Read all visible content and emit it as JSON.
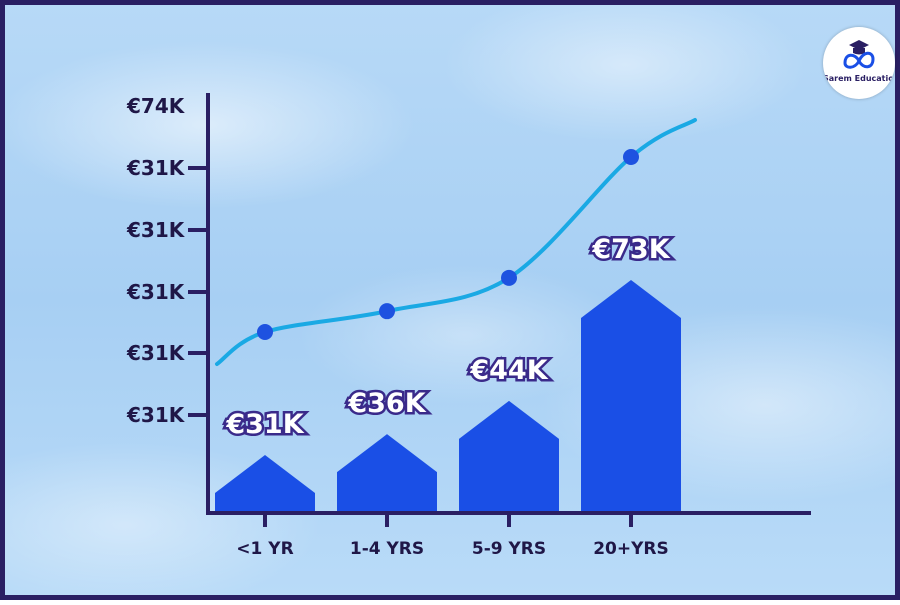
{
  "brand": {
    "name": "Sarem Education"
  },
  "colors": {
    "bar": "#1a4fe6",
    "line": "#1aa9e4",
    "marker": "#1e52e0",
    "axis": "#2a1f63",
    "border": "#2a1f63"
  },
  "chart_data": {
    "type": "bar",
    "categories": [
      "<1 YR",
      "1-4 YRS",
      "5-9 YRS",
      "20+YRS"
    ],
    "values": [
      31,
      36,
      44,
      73
    ],
    "data_labels": [
      "€31K",
      "€36K",
      "€44K",
      "€73K"
    ],
    "y_tick_labels": [
      "€31K",
      "€31K",
      "€31K",
      "€31K",
      "€31K",
      "€74K"
    ],
    "trend_line": {
      "type": "line",
      "values": [
        31,
        36,
        44,
        73
      ]
    },
    "grid": false,
    "legend": "none"
  }
}
